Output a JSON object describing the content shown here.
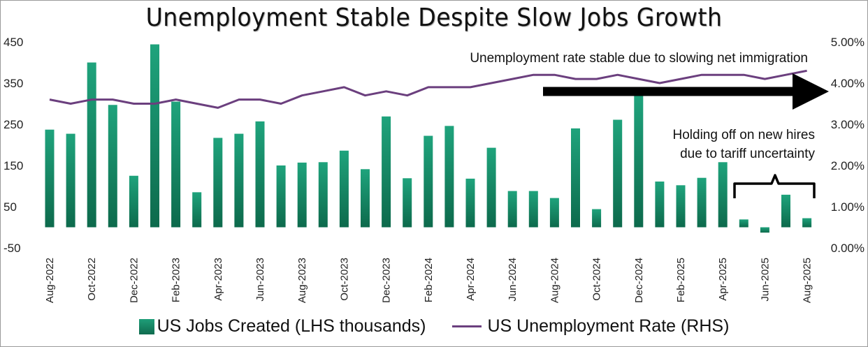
{
  "chart_data": {
    "type": "bar+line",
    "title": "Unemployment Stable Despite Slow Jobs Growth",
    "categories": [
      "Aug-2022",
      "Sep-2022",
      "Oct-2022",
      "Nov-2022",
      "Dec-2022",
      "Jan-2023",
      "Feb-2023",
      "Mar-2023",
      "Apr-2023",
      "May-2023",
      "Jun-2023",
      "Jul-2023",
      "Aug-2023",
      "Sep-2023",
      "Oct-2023",
      "Nov-2023",
      "Dec-2023",
      "Jan-2024",
      "Feb-2024",
      "Mar-2024",
      "Apr-2024",
      "May-2024",
      "Jun-2024",
      "Jul-2024",
      "Aug-2024",
      "Sep-2024",
      "Oct-2024",
      "Nov-2024",
      "Dec-2024",
      "Jan-2025",
      "Feb-2025",
      "Mar-2025",
      "Apr-2025",
      "May-2025",
      "Jun-2025",
      "Jul-2025",
      "Aug-2025"
    ],
    "x_tick_labels": [
      "Aug-2022",
      "Oct-2022",
      "Dec-2022",
      "Feb-2023",
      "Apr-2023",
      "Jun-2023",
      "Aug-2023",
      "Oct-2023",
      "Dec-2023",
      "Feb-2024",
      "Apr-2024",
      "Jun-2024",
      "Aug-2024",
      "Oct-2024",
      "Dec-2024",
      "Feb-2025",
      "Apr-2025",
      "Jun-2025",
      "Aug-2025"
    ],
    "series": [
      {
        "name": "US Jobs Created (LHS thousands)",
        "type": "bar",
        "axis": "left",
        "color": "#138a65",
        "values": [
          237,
          227,
          400,
          297,
          125,
          444,
          305,
          85,
          217,
          227,
          257,
          150,
          157,
          158,
          186,
          141,
          269,
          119,
          222,
          246,
          118,
          193,
          88,
          88,
          71,
          240,
          44,
          261,
          323,
          111,
          102,
          120,
          158,
          19,
          -13,
          79,
          22
        ]
      },
      {
        "name": "US Unemployment Rate (RHS)",
        "type": "line",
        "axis": "right",
        "color": "#6b3f7e",
        "values": [
          3.6,
          3.5,
          3.6,
          3.6,
          3.5,
          3.5,
          3.6,
          3.5,
          3.4,
          3.6,
          3.6,
          3.5,
          3.7,
          3.8,
          3.9,
          3.7,
          3.8,
          3.7,
          3.9,
          3.9,
          3.9,
          4.0,
          4.1,
          4.2,
          4.2,
          4.1,
          4.1,
          4.2,
          4.1,
          4.0,
          4.1,
          4.2,
          4.2,
          4.2,
          4.1,
          4.2,
          4.3
        ]
      }
    ],
    "y_left": {
      "ylim": [
        -50,
        450
      ],
      "ticks": [
        "450",
        "350",
        "250",
        "150",
        "50",
        "-50"
      ],
      "tick_values": [
        450,
        350,
        250,
        150,
        50,
        -50
      ]
    },
    "y_right": {
      "ylim": [
        0,
        5
      ],
      "ticks": [
        "5.00%",
        "4.00%",
        "3.00%",
        "2.00%",
        "1.00%",
        "0.00%"
      ],
      "tick_values": [
        5,
        4,
        3,
        2,
        1,
        0
      ]
    },
    "annotations": {
      "immigration": "Unemployment rate stable due to slowing net immigration",
      "hires_line1": "Holding off on new hires",
      "hires_line2": "due to tariff uncertainty"
    },
    "legend": {
      "bar_label": "US Jobs Created (LHS thousands)",
      "line_label": "US Unemployment Rate (RHS)",
      "position": "bottom"
    }
  }
}
